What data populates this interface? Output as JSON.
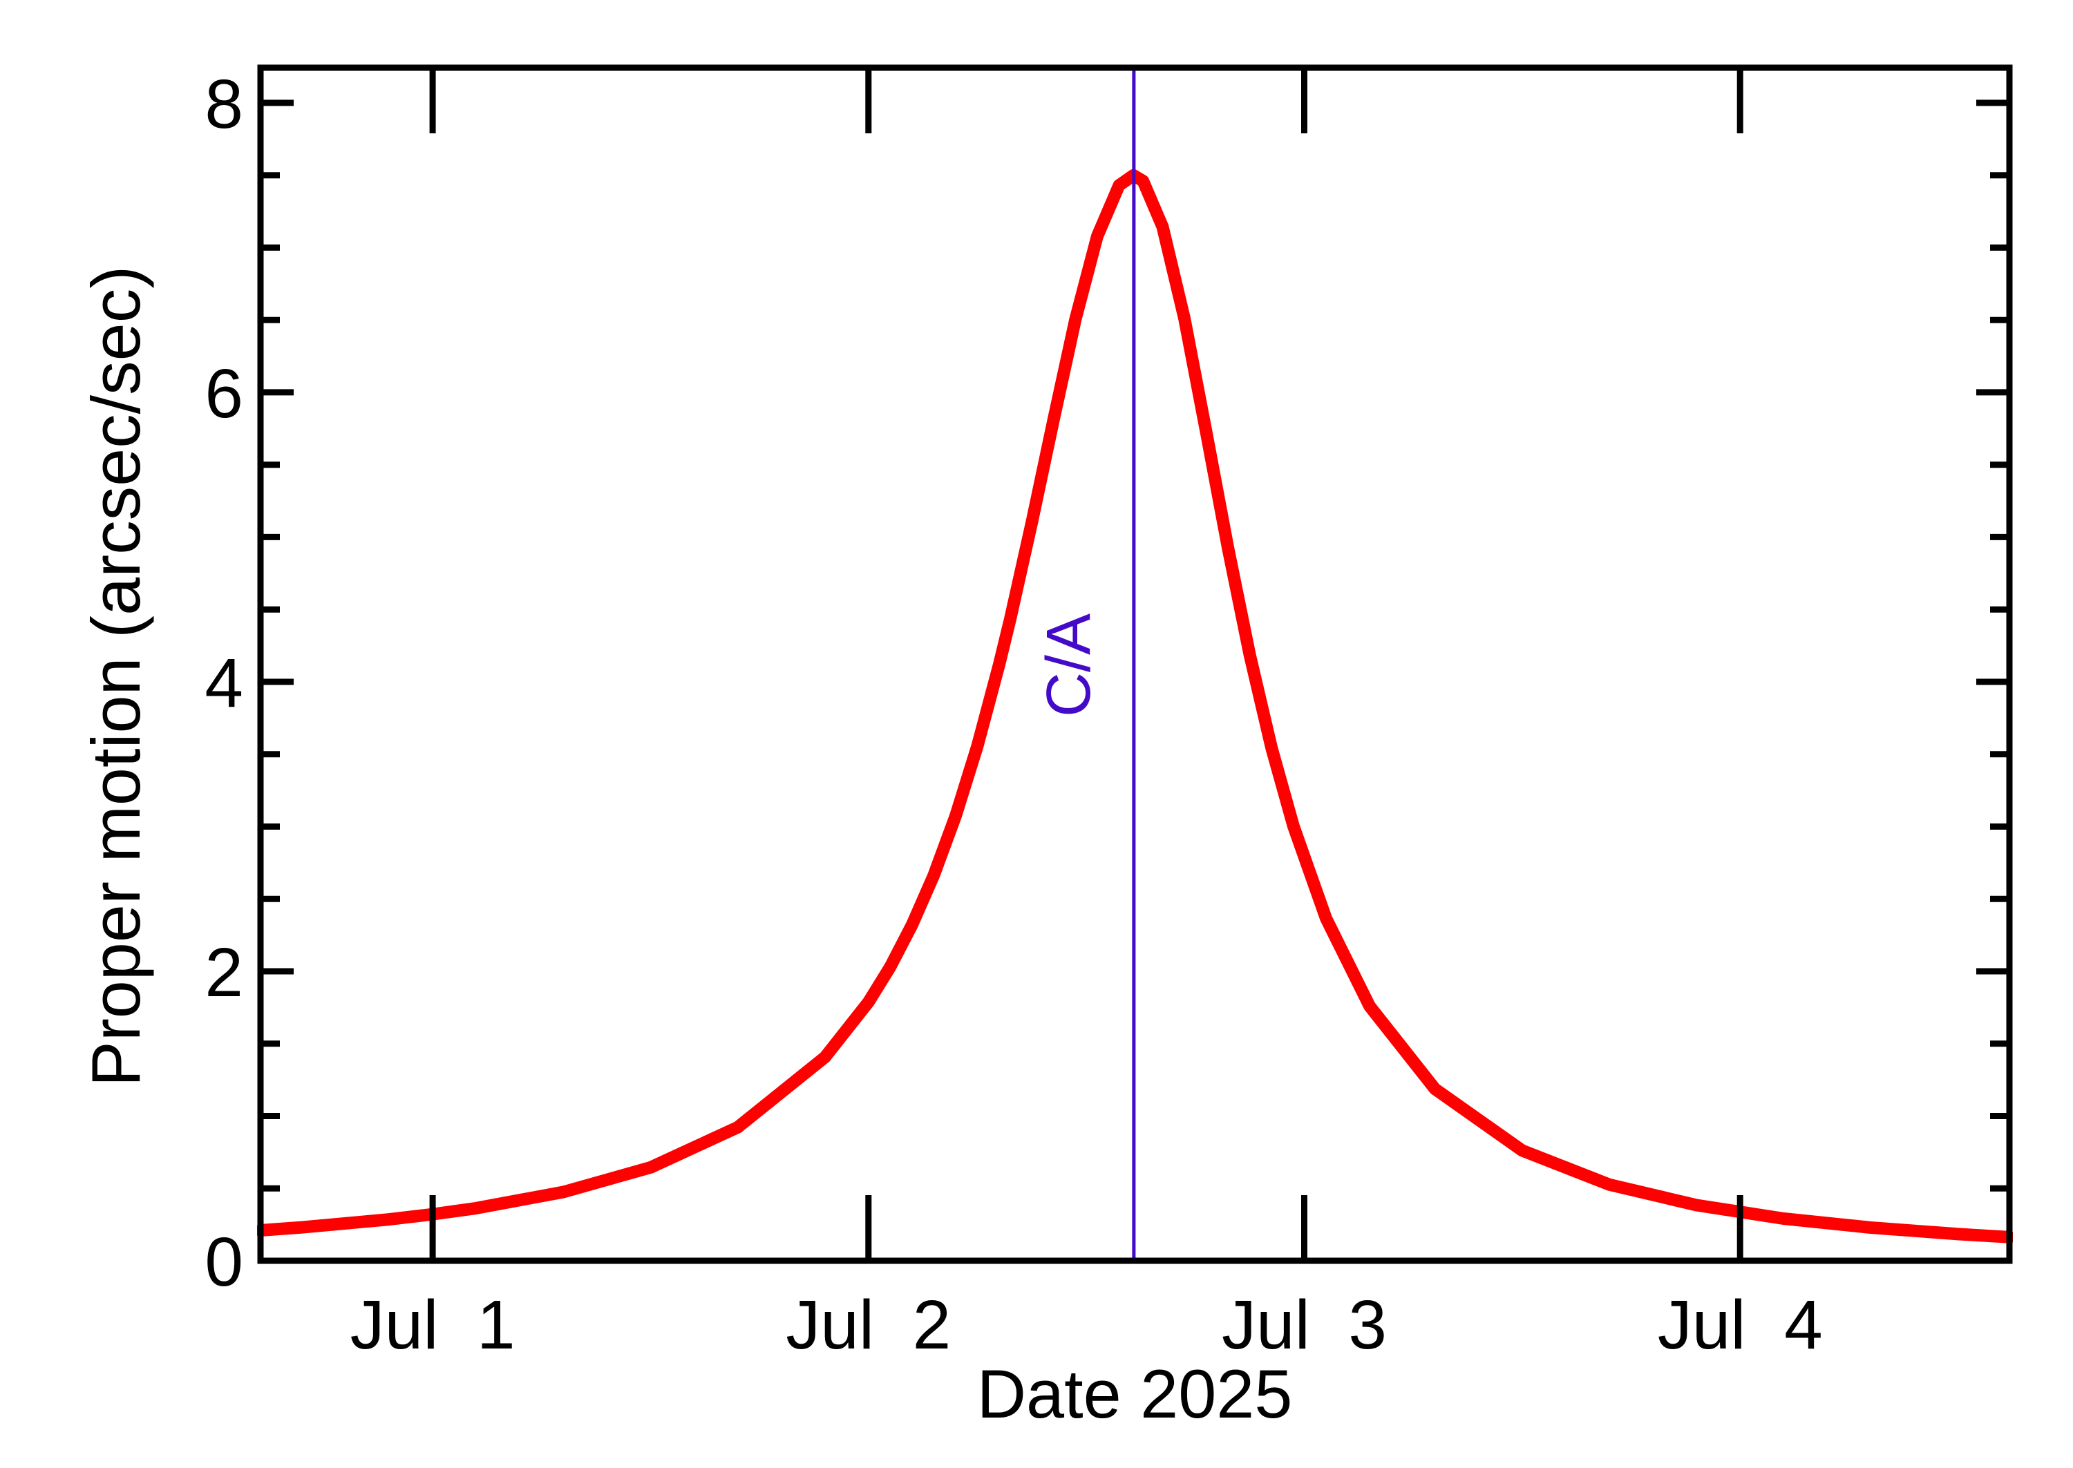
{
  "chart_data": {
    "type": "line",
    "title": "",
    "xlabel": "Date 2025",
    "ylabel": "Proper motion (arcsec/sec)",
    "xlim": [
      0.605,
      4.618
    ],
    "ylim": [
      0,
      8.243
    ],
    "x_unit_note": "x values are days of July 2025; 1.0 = Jul 1 00:00",
    "grid": false,
    "legend": null,
    "background_color": "#ffffff",
    "axis_color": "#000000",
    "x_ticks": [
      {
        "x": 1,
        "label": "Jul  1"
      },
      {
        "x": 2,
        "label": "Jul  2"
      },
      {
        "x": 3,
        "label": "Jul  3"
      },
      {
        "x": 4,
        "label": "Jul  4"
      }
    ],
    "y_ticks": [
      {
        "y": 0,
        "label": "0"
      },
      {
        "y": 2,
        "label": "2"
      },
      {
        "y": 4,
        "label": "4"
      },
      {
        "y": 6,
        "label": "6"
      },
      {
        "y": 8,
        "label": "8"
      }
    ],
    "y_minor_tick_step": 0.5,
    "series": [
      {
        "name": "proper motion",
        "color": "#ff0000",
        "stroke_width": 18,
        "peak": {
          "x": 2.608,
          "y": 7.5
        },
        "points": [
          [
            0.605,
            0.21
          ],
          [
            0.7,
            0.231
          ],
          [
            0.9,
            0.286
          ],
          [
            1.0,
            0.321
          ],
          [
            1.1,
            0.363
          ],
          [
            1.3,
            0.475
          ],
          [
            1.5,
            0.645
          ],
          [
            1.7,
            0.922
          ],
          [
            1.9,
            1.406
          ],
          [
            2.0,
            1.787
          ],
          [
            2.05,
            2.031
          ],
          [
            2.1,
            2.321
          ],
          [
            2.15,
            2.664
          ],
          [
            2.2,
            3.074
          ],
          [
            2.25,
            3.557
          ],
          [
            2.3,
            4.12
          ],
          [
            2.325,
            4.43
          ],
          [
            2.375,
            5.103
          ],
          [
            2.425,
            5.815
          ],
          [
            2.475,
            6.505
          ],
          [
            2.525,
            7.078
          ],
          [
            2.575,
            7.43
          ],
          [
            2.608,
            7.5
          ],
          [
            2.63,
            7.46
          ],
          [
            2.675,
            7.144
          ],
          [
            2.725,
            6.51
          ],
          [
            2.775,
            5.726
          ],
          [
            2.825,
            4.924
          ],
          [
            2.875,
            4.185
          ],
          [
            2.925,
            3.543
          ],
          [
            2.975,
            3.004
          ],
          [
            3.05,
            2.365
          ],
          [
            3.15,
            1.759
          ],
          [
            3.3,
            1.187
          ],
          [
            3.5,
            0.762
          ],
          [
            3.7,
            0.526
          ],
          [
            3.9,
            0.384
          ],
          [
            4.1,
            0.291
          ],
          [
            4.3,
            0.229
          ],
          [
            4.5,
            0.184
          ],
          [
            4.618,
            0.163
          ]
        ]
      }
    ],
    "annotations": [
      {
        "text": "C/A",
        "meaning": "closest approach marker line",
        "x": 2.609,
        "line_color": "#430bc9",
        "line_width": 5,
        "label_rotation_deg": -90
      }
    ]
  }
}
